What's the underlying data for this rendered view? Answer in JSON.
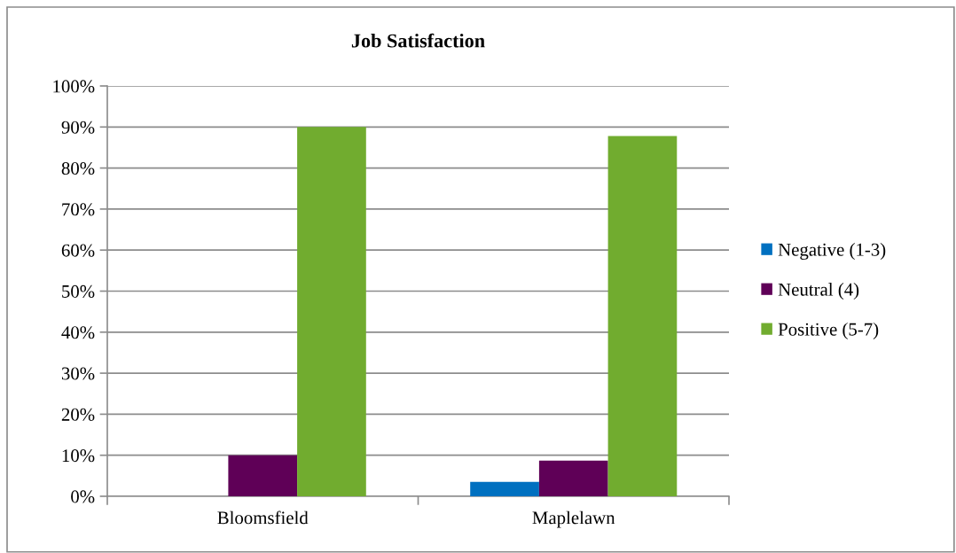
{
  "chart_data": {
    "type": "bar",
    "title": "Job Satisfaction",
    "categories": [
      "Bloomsfield",
      "Maplelawn"
    ],
    "series": [
      {
        "name": "Negative (1-3)",
        "color": "#0070c0",
        "values": [
          0,
          3.5
        ]
      },
      {
        "name": "Neutral (4)",
        "color": "#5f0057",
        "values": [
          10,
          8.7
        ]
      },
      {
        "name": "Positive (5-7)",
        "color": "#71ac2f",
        "values": [
          90,
          87.8
        ]
      }
    ],
    "ylim": [
      0,
      100
    ],
    "yticks": [
      {
        "value": 0,
        "label": "0%"
      },
      {
        "value": 10,
        "label": "10%"
      },
      {
        "value": 20,
        "label": "20%"
      },
      {
        "value": 30,
        "label": "30%"
      },
      {
        "value": 40,
        "label": "40%"
      },
      {
        "value": 50,
        "label": "50%"
      },
      {
        "value": 60,
        "label": "60%"
      },
      {
        "value": 70,
        "label": "70%"
      },
      {
        "value": 80,
        "label": "80%"
      },
      {
        "value": 90,
        "label": "90%"
      },
      {
        "value": 100,
        "label": "100%"
      }
    ],
    "grid": "y",
    "legend": "right"
  }
}
